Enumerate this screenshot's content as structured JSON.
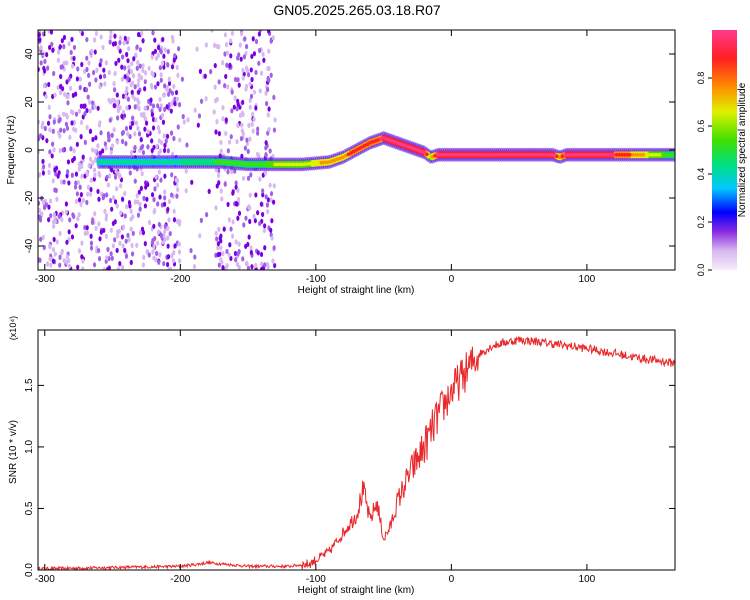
{
  "title": "GN05.2025.265.03.18.R07",
  "chart_data": [
    {
      "type": "heatmap",
      "xlabel": "Height of straight line (km)",
      "ylabel": "Frequency (Hz)",
      "xlim": [
        -305,
        165
      ],
      "ylim": [
        -50,
        50
      ],
      "xticks": [
        -300,
        -200,
        -100,
        0,
        100
      ],
      "yticks": [
        -40,
        -20,
        0,
        20,
        40
      ],
      "colorbar": {
        "label": "Normalized spectral amplitude",
        "ticks": [
          0.0,
          0.2,
          0.4,
          0.6,
          0.8
        ],
        "range": [
          0,
          1
        ]
      },
      "ridge": {
        "x": [
          -260,
          -230,
          -200,
          -170,
          -150,
          -130,
          -110,
          -90,
          -80,
          -70,
          -60,
          -50,
          -40,
          -30,
          -20,
          -15,
          -10,
          0,
          20,
          40,
          60,
          75,
          80,
          85,
          90,
          120,
          140,
          165
        ],
        "y": [
          -5,
          -5,
          -5,
          -5,
          -6,
          -6,
          -6,
          -5,
          -3,
          0,
          3,
          5,
          3,
          1,
          -1,
          -3,
          -2,
          -2,
          -2,
          -2,
          -2,
          -2,
          -3,
          -2,
          -2,
          -2,
          -2,
          -2
        ],
        "amp": [
          0.35,
          0.35,
          0.4,
          0.45,
          0.45,
          0.55,
          0.6,
          0.7,
          0.75,
          0.8,
          0.85,
          0.9,
          0.9,
          0.9,
          0.9,
          0.6,
          0.95,
          0.98,
          0.98,
          0.98,
          0.98,
          0.95,
          0.7,
          0.95,
          0.95,
          0.9,
          0.7,
          0.45
        ]
      }
    },
    {
      "type": "line",
      "xlabel": "Height of straight line (km)",
      "ylabel": "SNR (10 * v/v)",
      "yscale_label": "(x10⁴)",
      "xlim": [
        -305,
        165
      ],
      "ylim": [
        0,
        1.95
      ],
      "xticks": [
        -300,
        -200,
        -100,
        0,
        100
      ],
      "yticks": [
        0.0,
        0.5,
        1.0,
        1.5
      ],
      "color": "#e8282a",
      "series": [
        {
          "x": [
            -305,
            -250,
            -200,
            -185,
            -180,
            -150,
            -120,
            -105,
            -100,
            -90,
            -80,
            -70,
            -65,
            -60,
            -55,
            -50,
            -45,
            -40,
            -30,
            -20,
            -10,
            0,
            10,
            20,
            30,
            40,
            50,
            60,
            80,
            100,
            120,
            140,
            165
          ],
          "y": [
            0.01,
            0.02,
            0.03,
            0.05,
            0.06,
            0.03,
            0.03,
            0.05,
            0.08,
            0.15,
            0.3,
            0.45,
            0.65,
            0.4,
            0.55,
            0.25,
            0.35,
            0.55,
            0.8,
            1.0,
            1.25,
            1.45,
            1.6,
            1.75,
            1.82,
            1.85,
            1.87,
            1.86,
            1.83,
            1.8,
            1.76,
            1.72,
            1.68
          ]
        }
      ]
    }
  ]
}
